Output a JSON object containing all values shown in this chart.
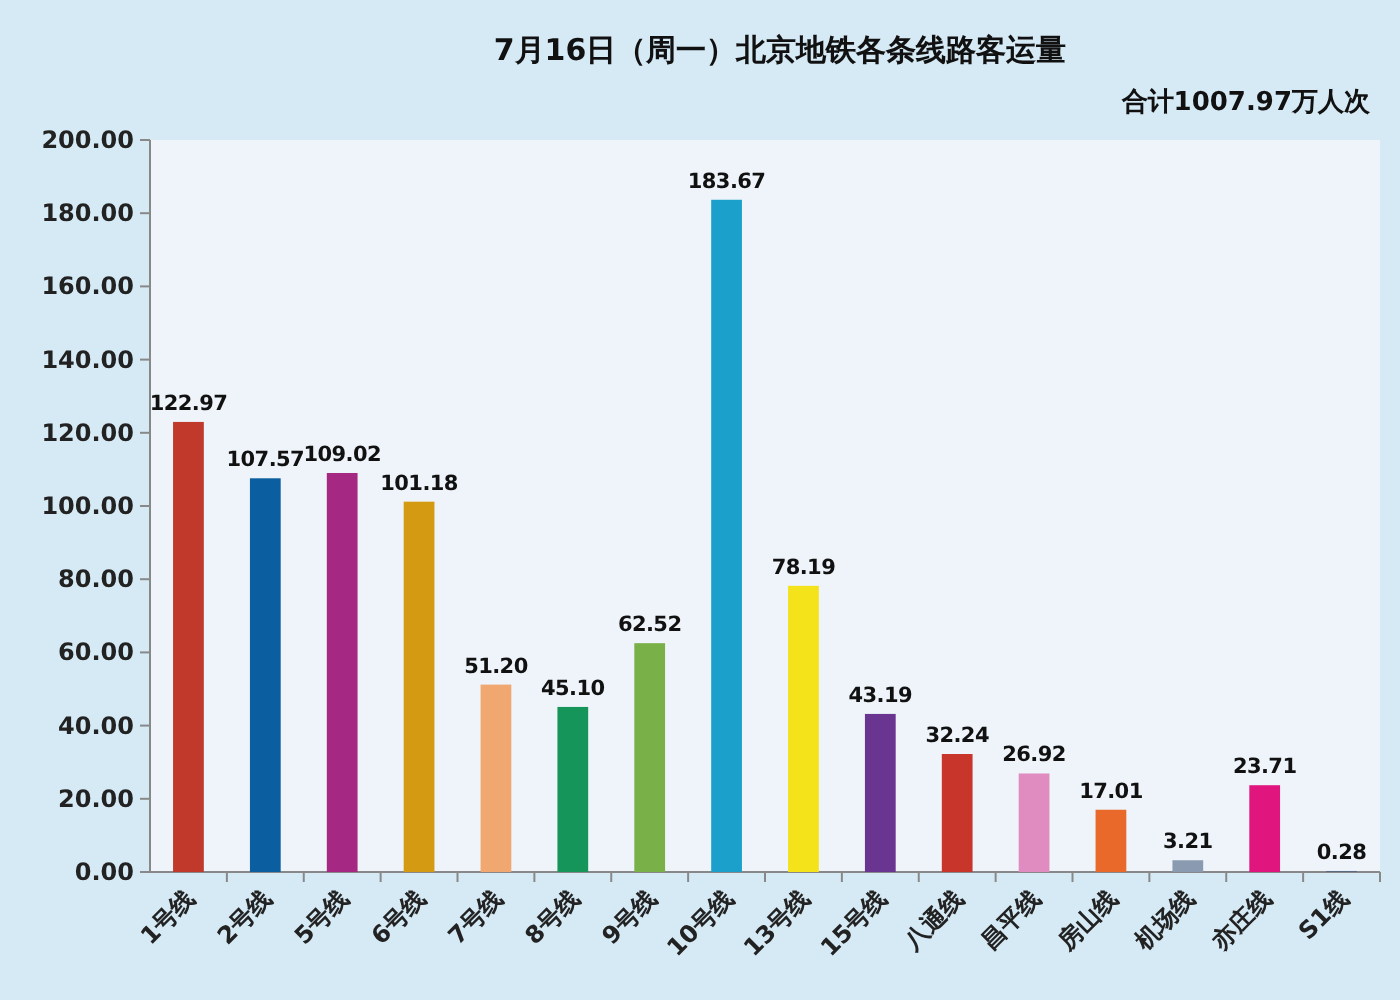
{
  "chart_data": {
    "type": "bar",
    "title": "7月16日（周一）北京地铁各条线路客运量",
    "annotations": [
      "合计1007.97万人次"
    ],
    "categories": [
      "1号线",
      "2号线",
      "5号线",
      "6号线",
      "7号线",
      "8号线",
      "9号线",
      "10号线",
      "13号线",
      "15号线",
      "八通线",
      "昌平线",
      "房山线",
      "机场线",
      "亦庄线",
      "S1线"
    ],
    "values": [
      122.97,
      107.57,
      109.02,
      101.18,
      51.2,
      45.1,
      62.52,
      183.67,
      78.19,
      43.19,
      32.24,
      26.92,
      17.01,
      3.21,
      23.71,
      0.28
    ],
    "value_labels": [
      "122.97",
      "107.57",
      "109.02",
      "101.18",
      "51.20",
      "45.10",
      "62.52",
      "183.67",
      "78.19",
      "43.19",
      "32.24",
      "26.92",
      "17.01",
      "3.21",
      "23.71",
      "0.28"
    ],
    "colors": [
      "#c0392b",
      "#0b5fa0",
      "#a52882",
      "#d49a12",
      "#f0a870",
      "#16955a",
      "#7ab048",
      "#1ba0cc",
      "#f4e21a",
      "#6a3590",
      "#c8352b",
      "#e08cc0",
      "#e8692a",
      "#8a9ab0",
      "#e0157e",
      "#5a6a80"
    ],
    "ylim": [
      0,
      200
    ],
    "yticks": [
      {
        "value": 0,
        "label": "0.00"
      },
      {
        "value": 20,
        "label": "20.00"
      },
      {
        "value": 40,
        "label": "40.00"
      },
      {
        "value": 60,
        "label": "60.00"
      },
      {
        "value": 80,
        "label": "80.00"
      },
      {
        "value": 100,
        "label": "100.00"
      },
      {
        "value": 120,
        "label": "120.00"
      },
      {
        "value": 140,
        "label": "140.00"
      },
      {
        "value": 160,
        "label": "160.00"
      },
      {
        "value": 180,
        "label": "180.00"
      },
      {
        "value": 200,
        "label": "200.00"
      }
    ]
  }
}
